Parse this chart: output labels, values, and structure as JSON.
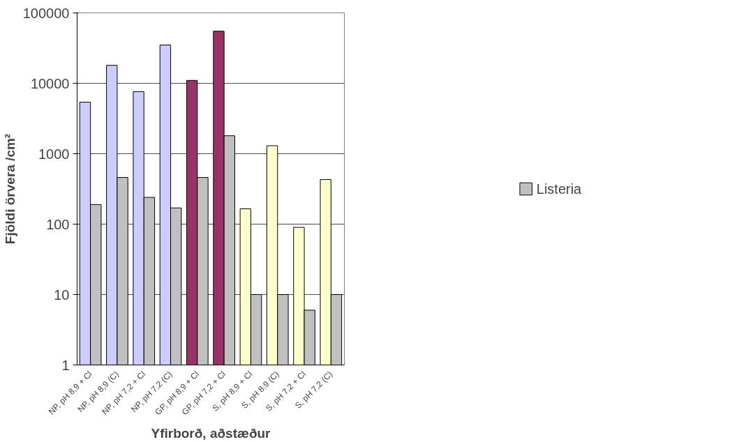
{
  "chart_data": {
    "type": "bar",
    "xlabel": "Yfirborð, aðstæður",
    "ylabel": "Fjöldi örvera /cm²",
    "categories": [
      "NP, pH 8,9 + Cl",
      "NP, pH 8,9 (C)",
      "NP, pH 7,2 + Cl",
      "NP, pH 7,2 (C)",
      "GP, pH 8,9 + Cl",
      "GP, pH 7,2 + Cl",
      "S, pH 8,9 + Cl",
      "S, pH 8,9 (C)",
      "S, pH 7,2 + Cl",
      "S, pH 7,2 (C)"
    ],
    "series": [
      {
        "colors": [
          "#ccccff",
          "#ccccff",
          "#ccccff",
          "#ccccff",
          "#993366",
          "#993366",
          "#ffffcc",
          "#ffffcc",
          "#ffffcc",
          "#ffffcc"
        ],
        "values": [
          5400,
          18000,
          7600,
          35000,
          11000,
          55000,
          165,
          1300,
          90,
          430
        ]
      },
      {
        "name": "Listeria",
        "color": "#c0c0c0",
        "values": [
          190,
          460,
          240,
          170,
          460,
          1800,
          10,
          10,
          6,
          10
        ]
      }
    ],
    "log": "y",
    "ylim": [
      1,
      100000
    ],
    "yticks": [
      1,
      10,
      100,
      1000,
      10000,
      100000
    ],
    "grid": "y",
    "legend": "right"
  }
}
